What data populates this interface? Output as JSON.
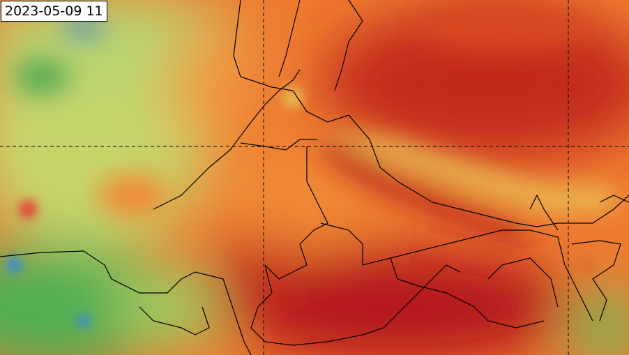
{
  "timestamp": "2023-05-09 11"
}
